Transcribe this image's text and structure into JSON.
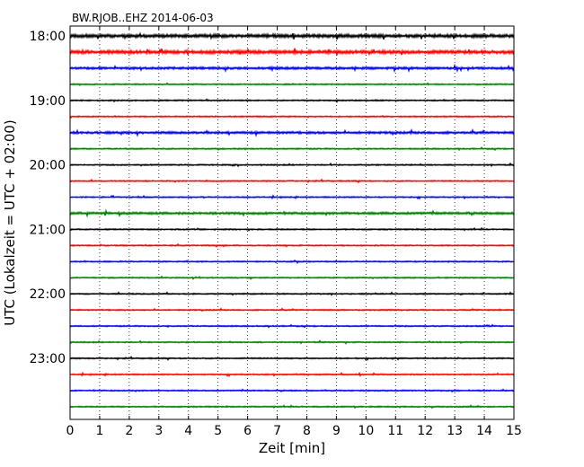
{
  "chart_data": {
    "type": "line",
    "title": "BW.RJOB..EHZ 2014-06-03",
    "xlabel": "Zeit  [min]",
    "ylabel": "UTC (Lokalzeit = UTC + 02:00)",
    "xlim": [
      0,
      15
    ],
    "x_ticks": [
      "0",
      "1",
      "2",
      "3",
      "4",
      "5",
      "6",
      "7",
      "8",
      "9",
      "10",
      "11",
      "12",
      "13",
      "14",
      "15"
    ],
    "y_ticks": [
      "18:00",
      "19:00",
      "20:00",
      "21:00",
      "22:00",
      "23:00"
    ],
    "grid": "vertical dotted",
    "trace_colors": [
      "#000000",
      "#ff0000",
      "#0000ff",
      "#008000"
    ],
    "traces": [
      {
        "start": "18:00",
        "color": "#000000",
        "activity": "high"
      },
      {
        "start": "18:15",
        "color": "#ff0000",
        "activity": "high"
      },
      {
        "start": "18:30",
        "color": "#0000ff",
        "activity": "medium"
      },
      {
        "start": "18:45",
        "color": "#008000",
        "activity": "low"
      },
      {
        "start": "19:00",
        "color": "#000000",
        "activity": "low"
      },
      {
        "start": "19:15",
        "color": "#ff0000",
        "activity": "low"
      },
      {
        "start": "19:30",
        "color": "#0000ff",
        "activity": "medium"
      },
      {
        "start": "19:45",
        "color": "#008000",
        "activity": "low"
      },
      {
        "start": "20:00",
        "color": "#000000",
        "activity": "low"
      },
      {
        "start": "20:15",
        "color": "#ff0000",
        "activity": "low"
      },
      {
        "start": "20:30",
        "color": "#0000ff",
        "activity": "low"
      },
      {
        "start": "20:45",
        "color": "#008000",
        "activity": "medium"
      },
      {
        "start": "21:00",
        "color": "#000000",
        "activity": "low"
      },
      {
        "start": "21:15",
        "color": "#ff0000",
        "activity": "low"
      },
      {
        "start": "21:30",
        "color": "#0000ff",
        "activity": "low"
      },
      {
        "start": "21:45",
        "color": "#008000",
        "activity": "low"
      },
      {
        "start": "22:00",
        "color": "#000000",
        "activity": "low"
      },
      {
        "start": "22:15",
        "color": "#ff0000",
        "activity": "low"
      },
      {
        "start": "22:30",
        "color": "#0000ff",
        "activity": "low"
      },
      {
        "start": "22:45",
        "color": "#008000",
        "activity": "low"
      },
      {
        "start": "23:00",
        "color": "#000000",
        "activity": "low"
      },
      {
        "start": "23:15",
        "color": "#ff0000",
        "activity": "low"
      },
      {
        "start": "23:30",
        "color": "#0000ff",
        "activity": "low"
      },
      {
        "start": "23:45",
        "color": "#008000",
        "activity": "low"
      }
    ]
  }
}
